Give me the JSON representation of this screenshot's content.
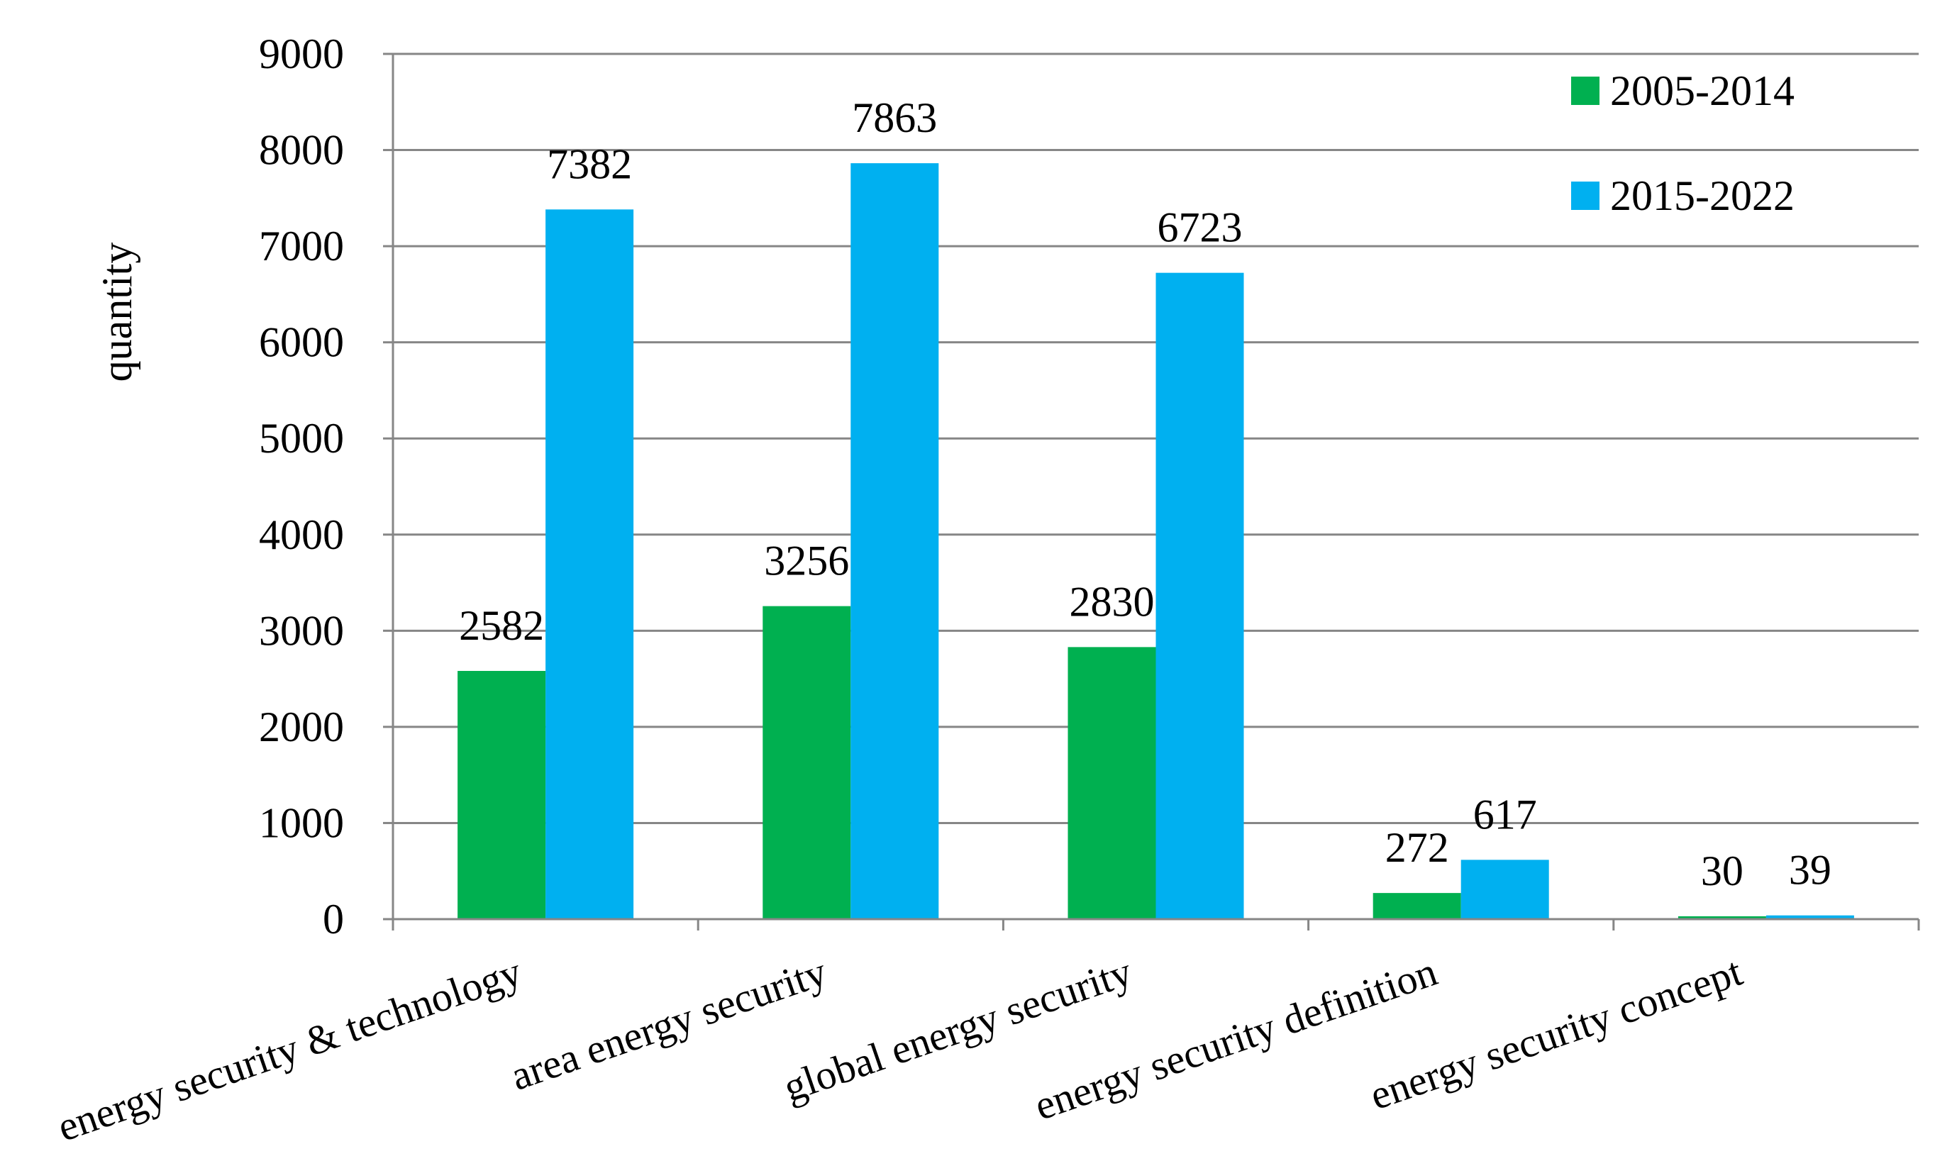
{
  "chart_data": {
    "type": "bar",
    "title": "",
    "xlabel": "",
    "ylabel": "quantity",
    "ylim": [
      0,
      9000
    ],
    "yticks": [
      0,
      1000,
      2000,
      3000,
      4000,
      5000,
      6000,
      7000,
      8000,
      9000
    ],
    "grid": true,
    "legend_position": "top-right",
    "categories": [
      "energy security & technology",
      "area energy security",
      "global energy security",
      "energy security definition",
      "energy security concept"
    ],
    "series": [
      {
        "name": "2005-2014",
        "color": "#00b050",
        "values": [
          2582,
          3256,
          2830,
          272,
          30
        ]
      },
      {
        "name": "2015-2022",
        "color": "#00b0f0",
        "values": [
          7382,
          7863,
          6723,
          617,
          39
        ]
      }
    ]
  }
}
